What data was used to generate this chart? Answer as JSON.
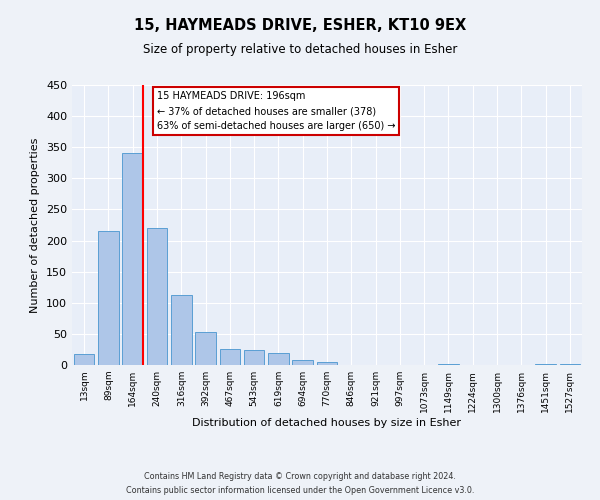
{
  "title": "15, HAYMEADS DRIVE, ESHER, KT10 9EX",
  "subtitle": "Size of property relative to detached houses in Esher",
  "xlabel": "Distribution of detached houses by size in Esher",
  "ylabel": "Number of detached properties",
  "bin_labels": [
    "13sqm",
    "89sqm",
    "164sqm",
    "240sqm",
    "316sqm",
    "392sqm",
    "467sqm",
    "543sqm",
    "619sqm",
    "694sqm",
    "770sqm",
    "846sqm",
    "921sqm",
    "997sqm",
    "1073sqm",
    "1149sqm",
    "1224sqm",
    "1300sqm",
    "1376sqm",
    "1451sqm",
    "1527sqm"
  ],
  "bar_heights": [
    18,
    215,
    340,
    220,
    113,
    53,
    25,
    24,
    20,
    8,
    5,
    0,
    0,
    0,
    0,
    2,
    0,
    0,
    0,
    2,
    2
  ],
  "bar_color": "#aec6e8",
  "bar_edge_color": "#5a9fd4",
  "red_line_bin": 2,
  "annotation_title": "15 HAYMEADS DRIVE: 196sqm",
  "annotation_line1": "← 37% of detached houses are smaller (378)",
  "annotation_line2": "63% of semi-detached houses are larger (650) →",
  "annotation_box_color": "#ffffff",
  "annotation_box_edge": "#cc0000",
  "ylim": [
    0,
    450
  ],
  "yticks": [
    0,
    50,
    100,
    150,
    200,
    250,
    300,
    350,
    400,
    450
  ],
  "footer1": "Contains HM Land Registry data © Crown copyright and database right 2024.",
  "footer2": "Contains public sector information licensed under the Open Government Licence v3.0.",
  "fig_bg_color": "#eef2f8",
  "plot_bg_color": "#e8eef8"
}
